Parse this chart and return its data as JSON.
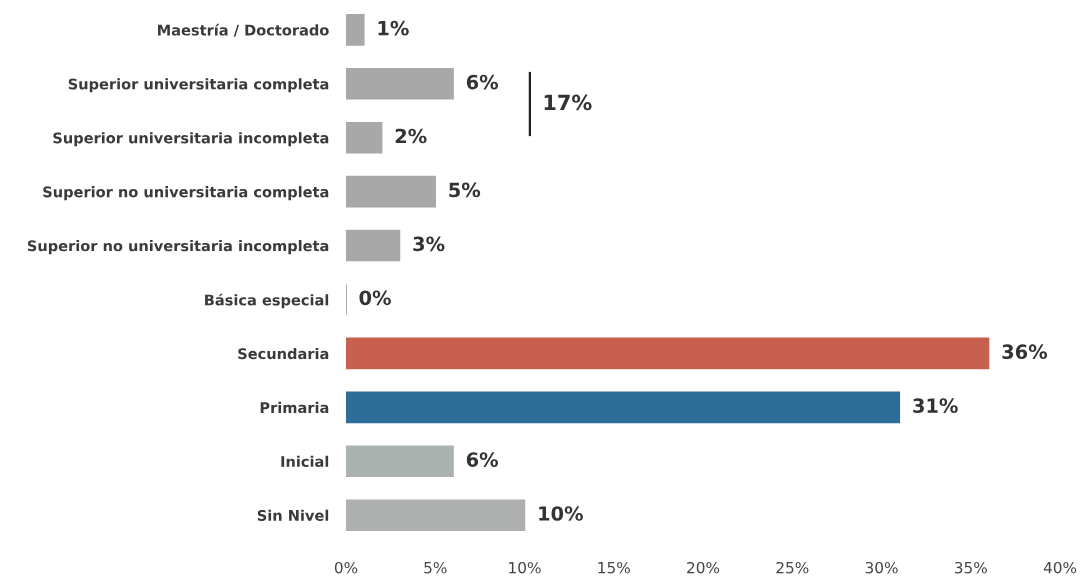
{
  "chart_data": {
    "type": "bar",
    "orientation": "horizontal",
    "categories": [
      "Maestría / Doctorado",
      "Superior universitaria completa",
      "Superior universitaria incompleta",
      "Superior no universitaria completa",
      "Superior no universitaria incompleta",
      "Básica especial",
      "Secundaria",
      "Primaria",
      "Inicial",
      "Sin Nivel"
    ],
    "values": [
      1,
      6,
      2,
      5,
      3,
      0,
      36,
      31,
      6,
      10
    ],
    "value_labels": [
      "1%",
      "6%",
      "2%",
      "5%",
      "3%",
      "0%",
      "36%",
      "31%",
      "6%",
      "10%"
    ],
    "colors": [
      "#a8a8a8",
      "#a8a8a8",
      "#a8a8a8",
      "#a8a8a8",
      "#a8a8a8",
      "#8a8a8a",
      "#c8604f",
      "#2f6d99",
      "#aab1ae",
      "#adb0ae"
    ],
    "xlim": [
      0,
      40
    ],
    "xticks": [
      {
        "value": 0,
        "label": "0%"
      },
      {
        "value": 5,
        "label": "5%"
      },
      {
        "value": 10,
        "label": "10%"
      },
      {
        "value": 15,
        "label": "15%"
      },
      {
        "value": 20,
        "label": "20%"
      },
      {
        "value": 25,
        "label": "25%"
      },
      {
        "value": 30,
        "label": "30%"
      },
      {
        "value": 35,
        "label": "35%"
      },
      {
        "value": 40,
        "label": "40%"
      }
    ],
    "annotations": [
      "17%"
    ]
  }
}
